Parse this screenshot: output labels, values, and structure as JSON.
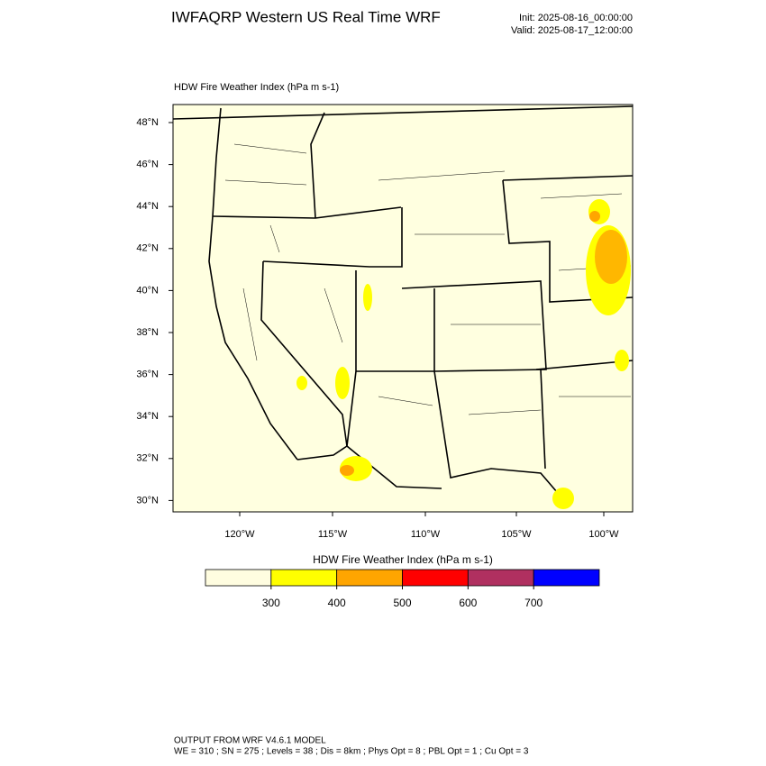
{
  "header": {
    "title": "IWFAQRP Western US Real Time WRF",
    "init": "Init: 2025-08-16_00:00:00",
    "valid": "Valid: 2025-08-17_12:00:00"
  },
  "map": {
    "subtitle": "HDW Fire Weather Index   (hPa m s-1)",
    "lat_labels": [
      "48°N",
      "46°N",
      "44°N",
      "42°N",
      "40°N",
      "38°N",
      "36°N",
      "34°N",
      "32°N",
      "30°N"
    ],
    "lon_labels": [
      "120°W",
      "115°W",
      "110°W",
      "105°W",
      "100°W"
    ]
  },
  "colorbar": {
    "title": "HDW Fire Weather Index (hPa m s-1)",
    "colors": [
      "#fffde0",
      "#ffff00",
      "#ffa500",
      "#ff0000",
      "#b03060",
      "#0000ff"
    ],
    "levels": [
      300,
      400,
      500,
      600,
      700
    ]
  },
  "footer": {
    "line1": "OUTPUT FROM WRF V4.6.1 MODEL",
    "line2": "WE = 310 ; SN = 275 ; Levels = 38 ; Dis = 8km ; Phys Opt = 8 ; PBL Opt = 1 ; Cu Opt = 3"
  }
}
